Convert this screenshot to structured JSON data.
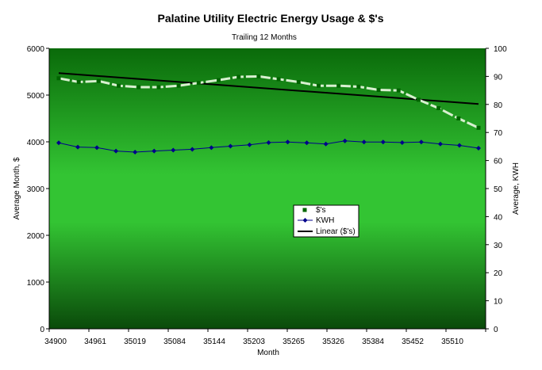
{
  "chart_data": {
    "type": "line",
    "title": "Palatine Utility Electric Energy Usage & $'s",
    "subtitle": "Trailing 12 Months",
    "xlabel": "Month",
    "ylabel": "Average Month,  $",
    "y2label": "Average, KWH",
    "x_ticks": [
      "34900",
      "34961",
      "35019",
      "35084",
      "35144",
      "35203",
      "35265",
      "35326",
      "35384",
      "35452",
      "35510"
    ],
    "ylim": [
      0,
      6000
    ],
    "y_ticks": [
      "0",
      "1000",
      "2000",
      "3000",
      "4000",
      "5000",
      "6000"
    ],
    "y2lim": [
      0,
      100
    ],
    "y2_ticks": [
      "0",
      "10",
      "20",
      "30",
      "40",
      "50",
      "60",
      "70",
      "80",
      "90",
      "100"
    ],
    "legend_position": "center-right",
    "series": [
      {
        "name": "$'s",
        "axis": "left",
        "color": "#006400",
        "line_color": "#d8f0d0",
        "marker": "square",
        "values": [
          5360,
          5280,
          5300,
          5200,
          5170,
          5170,
          5200,
          5260,
          5320,
          5390,
          5400,
          5340,
          5280,
          5200,
          5200,
          5180,
          5110,
          5100,
          4900,
          4720,
          4500,
          4300
        ]
      },
      {
        "name": "KWH",
        "axis": "right",
        "color": "#00008b",
        "marker": "diamond",
        "values": [
          66.3,
          64.8,
          64.6,
          63.4,
          63.0,
          63.4,
          63.7,
          64.0,
          64.6,
          65.1,
          65.6,
          66.4,
          66.6,
          66.3,
          65.9,
          67.0,
          66.6,
          66.6,
          66.4,
          66.6,
          65.9,
          65.4,
          64.4
        ]
      },
      {
        "name": "Linear ($'s)",
        "axis": "left",
        "color": "#000000",
        "marker": "none",
        "values": [
          5470,
          4810
        ]
      }
    ]
  }
}
